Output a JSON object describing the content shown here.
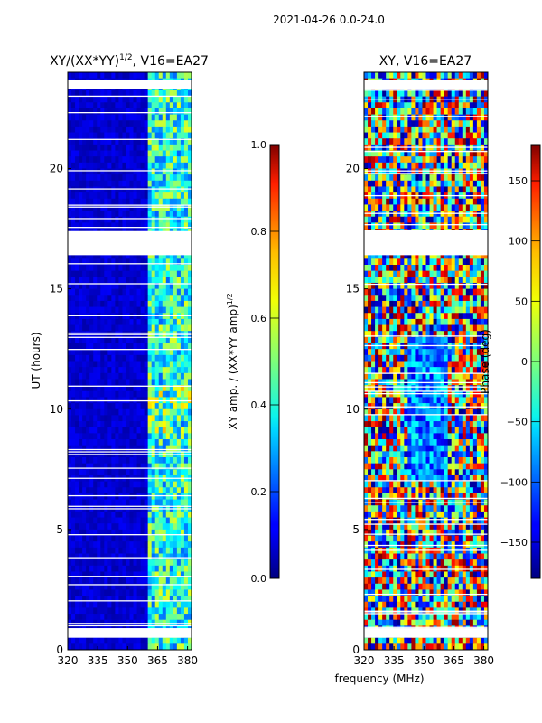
{
  "figure": {
    "suptitle": "2021-04-26 0.0-24.0",
    "xlabel_shared": "frequency (MHz)"
  },
  "chart_data": [
    {
      "type": "heatmap",
      "title": "XY/(XX*YY)",
      "title_sup": "1/2",
      "title_suffix": ", V16=EA27",
      "xlabel": "",
      "ylabel": "UT (hours)",
      "xlim": [
        320,
        382
      ],
      "ylim": [
        0,
        24
      ],
      "xticks": [
        "320",
        "335",
        "350",
        "365",
        "380"
      ],
      "yticks": [
        "0",
        "5",
        "10",
        "15",
        "20"
      ],
      "bright_band_mhz": [
        361,
        382
      ],
      "gap_bands_hours": [
        [
          0.5,
          0.9
        ],
        [
          16.4,
          17.4
        ],
        [
          23.3,
          23.7
        ]
      ],
      "colorbar": {
        "label": "XY amp. / (XX*YY amp)",
        "label_sup": "1/2",
        "range": [
          0.0,
          1.0
        ],
        "ticks": [
          "0.0",
          "0.2",
          "0.4",
          "0.6",
          "0.8",
          "1.0"
        ],
        "colormap": "jet"
      }
    },
    {
      "type": "heatmap",
      "title": "XY, V16=EA27",
      "xlabel": "frequency (MHz)",
      "ylabel": "",
      "xlim": [
        320,
        382
      ],
      "ylim": [
        0,
        24
      ],
      "xticks": [
        "320",
        "335",
        "350",
        "365",
        "380"
      ],
      "yticks": [
        "0",
        "5",
        "10",
        "15",
        "20"
      ],
      "gap_bands_hours": [
        [
          0.5,
          0.9
        ],
        [
          16.4,
          17.4
        ],
        [
          23.3,
          23.7
        ]
      ],
      "colorbar": {
        "label": "Phase (deg)",
        "range": [
          -180,
          180
        ],
        "ticks": [
          "−150",
          "−100",
          "−50",
          "0",
          "50",
          "100",
          "150"
        ],
        "tick_values": [
          -150,
          -100,
          -50,
          0,
          50,
          100,
          150
        ],
        "colormap": "jet"
      }
    }
  ]
}
